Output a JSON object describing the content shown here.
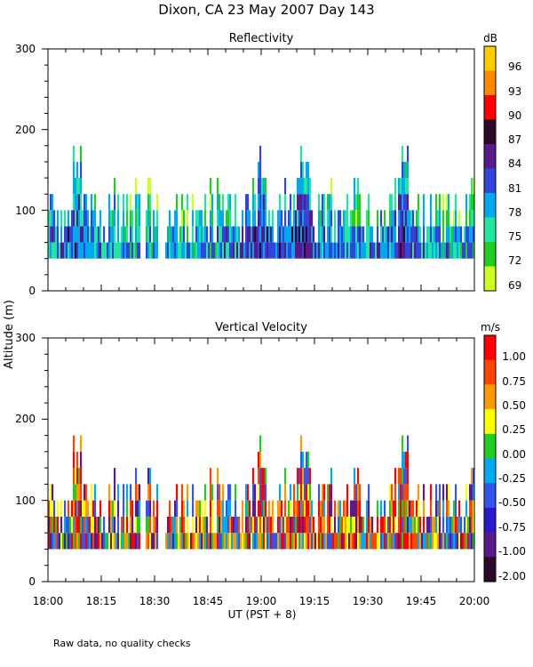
{
  "figure": {
    "title": "Dixon, CA 23 May 2007  Day 143",
    "shared_ylabel": "Altitude (m)",
    "xlabel": "UT  (PST + 8)",
    "footnote": "Raw data, no quality checks"
  },
  "chart_data": [
    {
      "type": "heatmap",
      "title": "Reflectivity",
      "x_ticklabels": [
        "18:00",
        "18:15",
        "18:30",
        "18:45",
        "19:00",
        "19:15",
        "19:30",
        "19:45",
        "20:00"
      ],
      "x_range_minutes": [
        0,
        120
      ],
      "y_ticklabels": [
        "0",
        "100",
        "200",
        "300"
      ],
      "ylim": [
        0,
        300
      ],
      "colorbar": {
        "unit": "dB",
        "labels": [
          "96",
          "93",
          "90",
          "87",
          "84",
          "81",
          "78",
          "75",
          "72",
          "69"
        ],
        "colors": [
          "#ffcc00",
          "#ff8800",
          "#ff0000",
          "#2a0a28",
          "#5a1a8c",
          "#3344dd",
          "#00a8ee",
          "#22e6a0",
          "#22cc22",
          "#ccff22"
        ],
        "range": [
          67.5,
          97.5
        ]
      },
      "data_summary": {
        "min_altitude_m": 40,
        "typical_top_m": [
          60,
          120
        ],
        "peak_top_m": 180,
        "peak_times": [
          "18:08",
          "19:00",
          "19:12",
          "19:40"
        ]
      }
    },
    {
      "type": "heatmap",
      "title": "Vertical Velocity",
      "x_ticklabels": [
        "18:00",
        "18:15",
        "18:30",
        "18:45",
        "19:00",
        "19:15",
        "19:30",
        "19:45",
        "20:00"
      ],
      "x_range_minutes": [
        0,
        120
      ],
      "y_ticklabels": [
        "0",
        "100",
        "200",
        "300"
      ],
      "ylim": [
        0,
        300
      ],
      "colorbar": {
        "unit": "m/s",
        "labels": [
          "1.00",
          "0.75",
          "0.50",
          "0.25",
          "0.00",
          "-0.25",
          "-0.50",
          "-0.75",
          "-1.00",
          "-2.00"
        ],
        "colors": [
          "#ff0000",
          "#ff4400",
          "#ff9900",
          "#ffff00",
          "#22cc22",
          "#00aaee",
          "#3355ee",
          "#2a18cc",
          "#5a1a8c",
          "#2a0a28"
        ],
        "range": [
          -2.0,
          1.0
        ]
      },
      "data_summary": {
        "min_altitude_m": 40,
        "typical_top_m": [
          80,
          120
        ],
        "peak_top_m": 180,
        "peak_times": [
          "18:08",
          "19:00",
          "19:12",
          "19:40"
        ]
      }
    }
  ]
}
